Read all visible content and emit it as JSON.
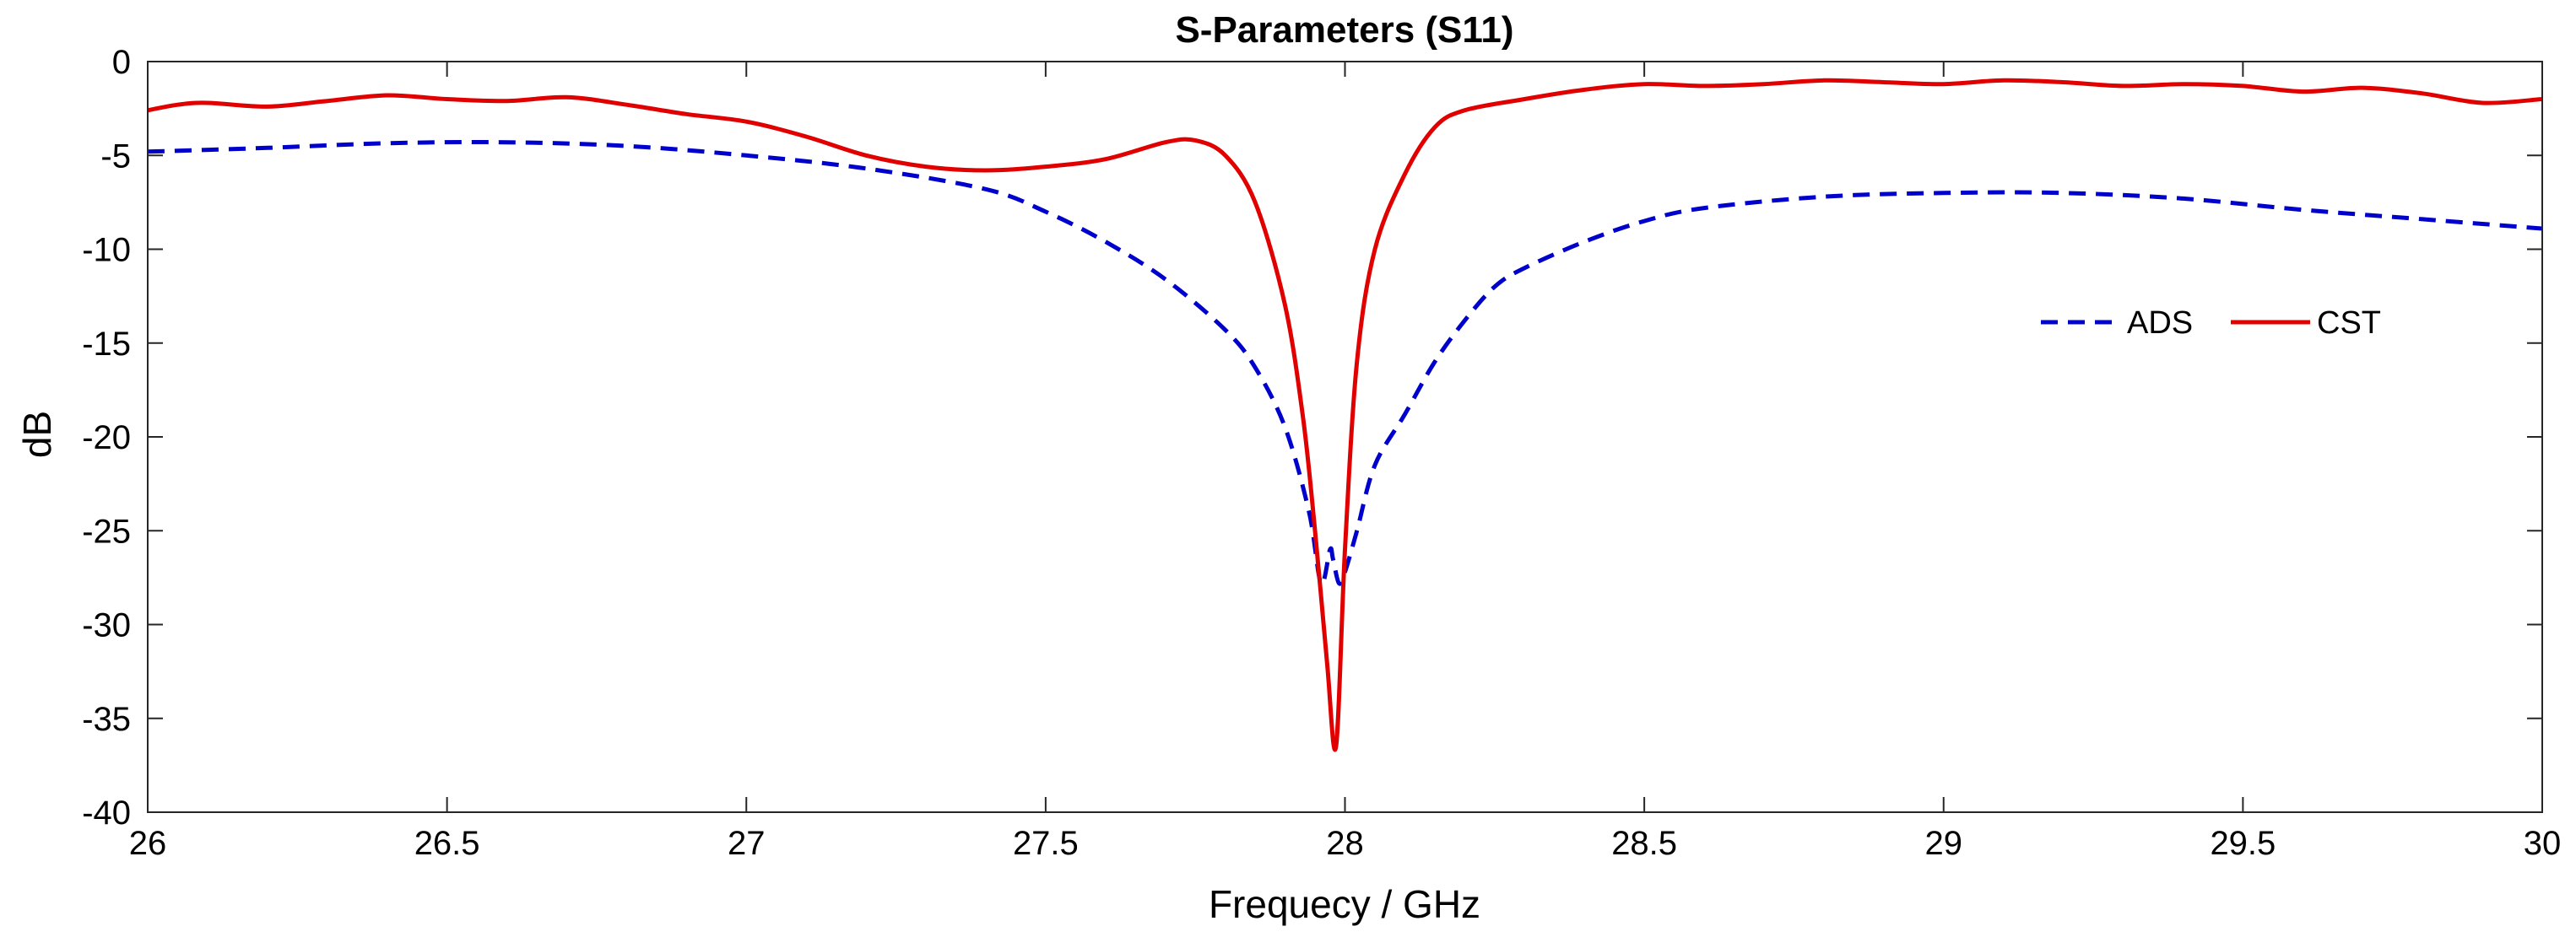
{
  "chart_data": {
    "type": "line",
    "title": "S-Parameters (S11)",
    "xlabel": "Frequecy / GHz",
    "ylabel": "dB",
    "xlim": [
      26,
      30
    ],
    "ylim": [
      -40,
      0
    ],
    "xticks": [
      26,
      26.5,
      27,
      27.5,
      28,
      28.5,
      29,
      29.5,
      30
    ],
    "yticks": [
      0,
      -5,
      -10,
      -15,
      -20,
      -25,
      -30,
      -35,
      -40
    ],
    "xtick_labels": [
      "26",
      "26.5",
      "27",
      "27.5",
      "28",
      "28.5",
      "29",
      "29.5",
      "30"
    ],
    "ytick_labels": [
      "0",
      "-5",
      "-10",
      "-15",
      "-20",
      "-25",
      "-30",
      "-35",
      "-40"
    ],
    "grid": false,
    "legend": {
      "placement": "right",
      "entries": [
        "ADS",
        "CST"
      ]
    },
    "series": [
      {
        "name": "ADS",
        "color": "#0000CC",
        "style": "dashed",
        "x": [
          26.0,
          26.2,
          26.4,
          26.6,
          26.8,
          27.0,
          27.2,
          27.4,
          27.5,
          27.6,
          27.7,
          27.8,
          27.85,
          27.9,
          27.94,
          27.96,
          27.975,
          27.98,
          27.99,
          28.0,
          28.02,
          28.05,
          28.1,
          28.15,
          28.2,
          28.25,
          28.3,
          28.4,
          28.5,
          28.6,
          28.8,
          29.0,
          29.2,
          29.4,
          29.6,
          29.8,
          30.0
        ],
        "y": [
          -4.8,
          -4.6,
          -4.35,
          -4.3,
          -4.5,
          -5.0,
          -5.7,
          -6.8,
          -8.0,
          -9.6,
          -11.6,
          -14.3,
          -16.3,
          -19.5,
          -24.0,
          -27.8,
          -26.0,
          -26.5,
          -27.8,
          -27.2,
          -25.0,
          -21.5,
          -18.8,
          -16.0,
          -13.8,
          -12.0,
          -11.0,
          -9.6,
          -8.5,
          -7.8,
          -7.2,
          -7.0,
          -7.0,
          -7.3,
          -7.9,
          -8.4,
          -8.9
        ]
      },
      {
        "name": "CST",
        "color": "#E00000",
        "style": "solid",
        "x": [
          26.0,
          26.05,
          26.1,
          26.2,
          26.3,
          26.4,
          26.5,
          26.6,
          26.7,
          26.8,
          26.9,
          27.0,
          27.1,
          27.2,
          27.3,
          27.4,
          27.5,
          27.6,
          27.7,
          27.75,
          27.8,
          27.85,
          27.9,
          27.93,
          27.95,
          27.97,
          27.985,
          28.0,
          28.02,
          28.05,
          28.1,
          28.15,
          28.2,
          28.3,
          28.4,
          28.5,
          28.6,
          28.7,
          28.8,
          28.9,
          29.0,
          29.1,
          29.2,
          29.3,
          29.4,
          29.5,
          29.6,
          29.7,
          29.8,
          29.9,
          30.0
        ],
        "y": [
          -2.6,
          -2.3,
          -2.2,
          -2.4,
          -2.1,
          -1.8,
          -2.0,
          -2.1,
          -1.9,
          -2.3,
          -2.8,
          -3.2,
          -4.0,
          -5.0,
          -5.6,
          -5.8,
          -5.6,
          -5.2,
          -4.3,
          -4.2,
          -5.0,
          -7.5,
          -13.0,
          -19.0,
          -25.0,
          -32.0,
          -36.5,
          -26.0,
          -16.0,
          -10.0,
          -6.0,
          -3.5,
          -2.6,
          -2.0,
          -1.5,
          -1.2,
          -1.3,
          -1.2,
          -1.0,
          -1.1,
          -1.2,
          -1.0,
          -1.1,
          -1.3,
          -1.2,
          -1.3,
          -1.6,
          -1.4,
          -1.7,
          -2.2,
          -2.0
        ]
      }
    ]
  }
}
